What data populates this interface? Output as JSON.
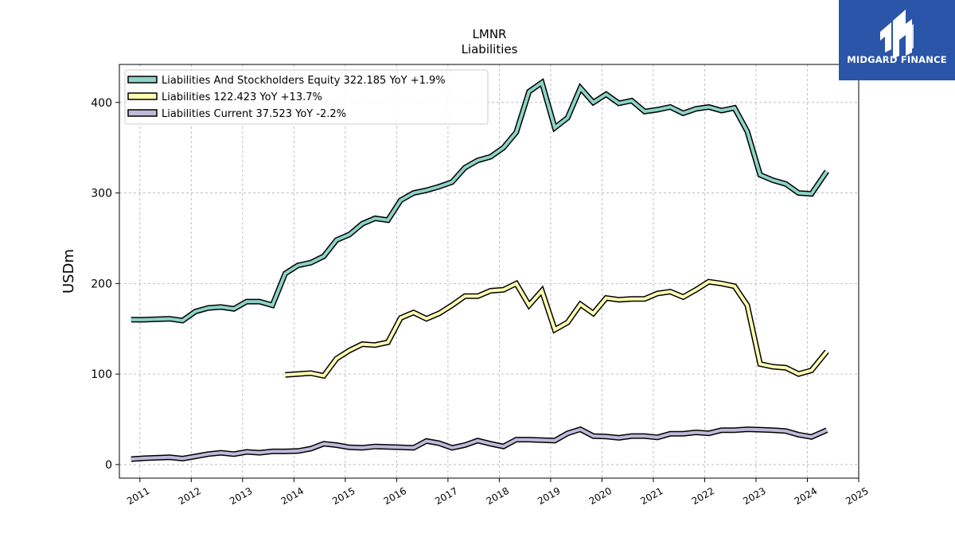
{
  "brand": {
    "name": "MIDGARD FINANCE",
    "icon": "mf-logo-icon",
    "color": "#2a55a8"
  },
  "chart_data": {
    "type": "line",
    "title": "LMNR",
    "subtitle": "Liabilities",
    "ylabel": "USDm",
    "xlabel": "",
    "xlim": [
      2010.6,
      2025.0
    ],
    "ylim": [
      -15,
      442
    ],
    "x_ticks": [
      "2011",
      "2012",
      "2013",
      "2014",
      "2015",
      "2016",
      "2017",
      "2018",
      "2019",
      "2020",
      "2021",
      "2022",
      "2023",
      "2024",
      "2025"
    ],
    "y_ticks": [
      0,
      100,
      200,
      300,
      400
    ],
    "grid": true,
    "legend_position": "top-left",
    "series": [
      {
        "name": "Liabilities And Stockholders Equity  322.185 YoY +1.9%",
        "color": "#8dd3c7",
        "points": [
          [
            2010.83,
            160
          ],
          [
            2011.08,
            160
          ],
          [
            2011.33,
            160.5
          ],
          [
            2011.58,
            161
          ],
          [
            2011.83,
            159
          ],
          [
            2012.08,
            169
          ],
          [
            2012.33,
            173
          ],
          [
            2012.58,
            174
          ],
          [
            2012.83,
            172
          ],
          [
            2013.08,
            180
          ],
          [
            2013.33,
            180
          ],
          [
            2013.58,
            176
          ],
          [
            2013.83,
            211
          ],
          [
            2014.08,
            220
          ],
          [
            2014.33,
            223
          ],
          [
            2014.58,
            230
          ],
          [
            2014.83,
            248
          ],
          [
            2015.08,
            254
          ],
          [
            2015.33,
            266
          ],
          [
            2015.58,
            272
          ],
          [
            2015.83,
            270
          ],
          [
            2016.08,
            292
          ],
          [
            2016.33,
            300
          ],
          [
            2016.58,
            303
          ],
          [
            2016.83,
            307
          ],
          [
            2017.08,
            312
          ],
          [
            2017.33,
            328
          ],
          [
            2017.58,
            336
          ],
          [
            2017.83,
            340
          ],
          [
            2018.08,
            350
          ],
          [
            2018.33,
            367
          ],
          [
            2018.58,
            412
          ],
          [
            2018.83,
            422
          ],
          [
            2019.08,
            372
          ],
          [
            2019.33,
            383
          ],
          [
            2019.58,
            416
          ],
          [
            2019.83,
            400
          ],
          [
            2020.08,
            409
          ],
          [
            2020.33,
            399
          ],
          [
            2020.58,
            402
          ],
          [
            2020.83,
            390
          ],
          [
            2021.08,
            392
          ],
          [
            2021.33,
            395
          ],
          [
            2021.58,
            388
          ],
          [
            2021.83,
            393
          ],
          [
            2022.08,
            395
          ],
          [
            2022.33,
            391
          ],
          [
            2022.58,
            394
          ],
          [
            2022.83,
            368
          ],
          [
            2023.08,
            320
          ],
          [
            2023.33,
            314
          ],
          [
            2023.58,
            310
          ],
          [
            2023.83,
            300
          ],
          [
            2024.08,
            299
          ],
          [
            2024.38,
            324
          ]
        ]
      },
      {
        "name": "Liabilities  122.423 YoY +13.7%",
        "color": "#ffffb3",
        "points": [
          [
            2013.83,
            99
          ],
          [
            2014.08,
            100
          ],
          [
            2014.33,
            101
          ],
          [
            2014.58,
            98
          ],
          [
            2014.83,
            117
          ],
          [
            2015.08,
            126
          ],
          [
            2015.33,
            133
          ],
          [
            2015.58,
            132
          ],
          [
            2015.83,
            135
          ],
          [
            2016.08,
            162
          ],
          [
            2016.33,
            168
          ],
          [
            2016.58,
            161
          ],
          [
            2016.83,
            167
          ],
          [
            2017.08,
            176
          ],
          [
            2017.33,
            186
          ],
          [
            2017.58,
            186
          ],
          [
            2017.83,
            192
          ],
          [
            2018.08,
            193
          ],
          [
            2018.33,
            200
          ],
          [
            2018.58,
            176
          ],
          [
            2018.83,
            192
          ],
          [
            2019.08,
            149
          ],
          [
            2019.33,
            157
          ],
          [
            2019.58,
            177
          ],
          [
            2019.83,
            167
          ],
          [
            2020.08,
            184
          ],
          [
            2020.33,
            182
          ],
          [
            2020.58,
            183
          ],
          [
            2020.83,
            183
          ],
          [
            2021.08,
            189
          ],
          [
            2021.33,
            191
          ],
          [
            2021.58,
            185
          ],
          [
            2021.83,
            193
          ],
          [
            2022.08,
            202
          ],
          [
            2022.33,
            200
          ],
          [
            2022.58,
            197
          ],
          [
            2022.83,
            176
          ],
          [
            2023.08,
            111
          ],
          [
            2023.33,
            108
          ],
          [
            2023.58,
            107
          ],
          [
            2023.83,
            100
          ],
          [
            2024.08,
            104
          ],
          [
            2024.38,
            125
          ]
        ]
      },
      {
        "name": "Liabilities Current  37.523 YoY -2.2%",
        "color": "#bebada",
        "points": [
          [
            2010.83,
            6
          ],
          [
            2011.08,
            7
          ],
          [
            2011.33,
            7.5
          ],
          [
            2011.58,
            8
          ],
          [
            2011.83,
            6.5
          ],
          [
            2012.08,
            9
          ],
          [
            2012.33,
            11.5
          ],
          [
            2012.58,
            13
          ],
          [
            2012.83,
            11.5
          ],
          [
            2013.08,
            14
          ],
          [
            2013.33,
            13
          ],
          [
            2013.58,
            14.5
          ],
          [
            2013.83,
            14.5
          ],
          [
            2014.08,
            15
          ],
          [
            2014.33,
            17.5
          ],
          [
            2014.58,
            23
          ],
          [
            2014.83,
            21.5
          ],
          [
            2015.08,
            19
          ],
          [
            2015.33,
            18.5
          ],
          [
            2015.58,
            20
          ],
          [
            2015.83,
            19.5
          ],
          [
            2016.08,
            19
          ],
          [
            2016.33,
            18.5
          ],
          [
            2016.58,
            26
          ],
          [
            2016.83,
            23.5
          ],
          [
            2017.08,
            18.5
          ],
          [
            2017.33,
            21.5
          ],
          [
            2017.58,
            26.5
          ],
          [
            2017.83,
            23
          ],
          [
            2018.08,
            20
          ],
          [
            2018.33,
            27.5
          ],
          [
            2018.58,
            27.5
          ],
          [
            2018.83,
            27
          ],
          [
            2019.08,
            26.5
          ],
          [
            2019.33,
            34.5
          ],
          [
            2019.58,
            39
          ],
          [
            2019.83,
            31.5
          ],
          [
            2020.08,
            31
          ],
          [
            2020.33,
            29.5
          ],
          [
            2020.58,
            31.5
          ],
          [
            2020.83,
            31.5
          ],
          [
            2021.08,
            30
          ],
          [
            2021.33,
            34
          ],
          [
            2021.58,
            34
          ],
          [
            2021.83,
            35.5
          ],
          [
            2022.08,
            34.5
          ],
          [
            2022.33,
            38
          ],
          [
            2022.58,
            38
          ],
          [
            2022.83,
            39
          ],
          [
            2023.08,
            38.5
          ],
          [
            2023.33,
            38
          ],
          [
            2023.58,
            37
          ],
          [
            2023.83,
            33
          ],
          [
            2024.08,
            30.5
          ],
          [
            2024.38,
            38
          ]
        ]
      }
    ]
  }
}
